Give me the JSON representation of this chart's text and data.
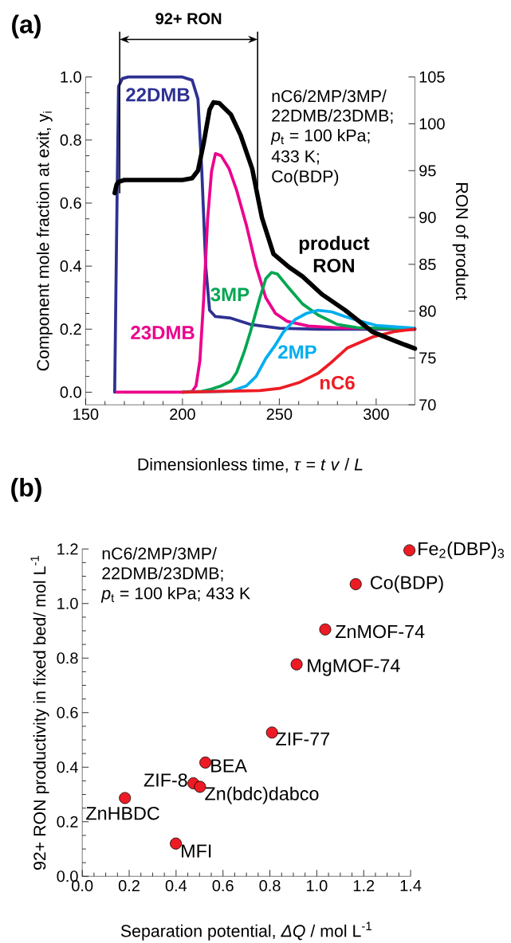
{
  "chart_data": [
    {
      "type": "line",
      "title": "(a)",
      "xlabel": "Dimensionless time, *τ* = *t* *v* / *L*",
      "ylabel": "Component mole fraction at exit, y$_{i}$",
      "y2label": "RON of product",
      "xlim": [
        150,
        320
      ],
      "xticks": [
        150,
        200,
        250,
        300
      ],
      "ylim": [
        -0.04,
        1.0
      ],
      "yticks": [
        {
          "value": 0,
          "label": "0.0"
        },
        {
          "value": 0.2,
          "label": "0.2"
        },
        {
          "value": 0.4,
          "label": "0.4"
        },
        {
          "value": 0.6,
          "label": "0.6"
        },
        {
          "value": 0.8,
          "label": "0.8"
        },
        {
          "value": 1.0,
          "label": "1.0"
        }
      ],
      "y2lim": [
        70,
        105
      ],
      "y2ticks": [
        70,
        75,
        80,
        85,
        90,
        95,
        100,
        105
      ],
      "marker": "none",
      "line_style": "solid",
      "ref_lines": [
        {
          "axis": "x",
          "value": 167.6
        },
        {
          "axis": "x",
          "value": 238.8
        }
      ],
      "annotations": [
        "92+ RON",
        "nC6/2MP/3MP/",
        "22DMB/23DMB;",
        "*p*$_{t}$ = 100 kPa;",
        "433 K;",
        "Co(BDP)"
      ],
      "series": [
        {
          "name": "22DMB",
          "color": "#2e3192",
          "x": [
            165,
            166,
            167,
            169,
            172,
            200,
            205,
            208,
            210,
            212,
            214,
            217,
            225,
            235,
            250,
            270,
            320
          ],
          "values": [
            0,
            0.5,
            0.97,
            0.995,
            1.0,
            1.0,
            0.99,
            0.93,
            0.7,
            0.4,
            0.26,
            0.24,
            0.235,
            0.215,
            0.203,
            0.2,
            0.2
          ]
        },
        {
          "name": "23DMB",
          "color": "#ec008c",
          "x": [
            166,
            200,
            205,
            207,
            209,
            211,
            213,
            215,
            217,
            220,
            224,
            228,
            233,
            238,
            243,
            248,
            254,
            265,
            280,
            320
          ],
          "values": [
            0,
            0,
            0.003,
            0.02,
            0.1,
            0.3,
            0.55,
            0.7,
            0.757,
            0.75,
            0.71,
            0.64,
            0.53,
            0.4,
            0.3,
            0.25,
            0.225,
            0.21,
            0.204,
            0.2
          ]
        },
        {
          "name": "3MP",
          "color": "#00a651",
          "x": [
            200,
            210,
            215,
            220,
            225,
            228,
            232,
            235,
            240,
            243,
            246,
            249,
            255,
            262,
            270,
            280,
            290,
            320
          ],
          "values": [
            0,
            0.003,
            0.01,
            0.02,
            0.035,
            0.063,
            0.13,
            0.19,
            0.3,
            0.36,
            0.38,
            0.375,
            0.33,
            0.28,
            0.245,
            0.215,
            0.205,
            0.2
          ]
        },
        {
          "name": "2MP",
          "color": "#00aeef",
          "x": [
            200,
            225,
            233,
            238,
            243,
            248,
            252,
            258,
            264,
            270,
            277,
            284,
            292,
            300,
            320
          ],
          "values": [
            0,
            0.003,
            0.02,
            0.05,
            0.107,
            0.15,
            0.19,
            0.23,
            0.25,
            0.26,
            0.255,
            0.24,
            0.225,
            0.212,
            0.203
          ]
        },
        {
          "name": "nC6",
          "color": "#ed1c24",
          "x": [
            200,
            240,
            250,
            260,
            270,
            276,
            285,
            298,
            310,
            320
          ],
          "values": [
            0,
            0.005,
            0.012,
            0.03,
            0.06,
            0.09,
            0.14,
            0.175,
            0.193,
            0.2
          ]
        },
        {
          "name": "product RON",
          "color": "#000000",
          "axis": "y2",
          "x": [
            165,
            166,
            167,
            170,
            200,
            205,
            208,
            211,
            214,
            216,
            219,
            225,
            230,
            236,
            241,
            247,
            255,
            262,
            272,
            284,
            298,
            310,
            320
          ],
          "values": [
            92.6,
            93.5,
            93.8,
            94.0,
            94.0,
            94.2,
            95,
            98,
            101.5,
            102.3,
            102.2,
            101,
            98.8,
            95.2,
            90,
            86.1,
            84.7,
            83.7,
            81.8,
            80.1,
            77.8,
            76.8,
            76.0
          ]
        }
      ]
    },
    {
      "type": "scatter",
      "title": "(b)",
      "xlabel": "Separation potential, *ΔQ* / mol L$^{-1}$",
      "ylabel": "92+ RON productivity in fixed bed/ mol L$^{-1}$",
      "xlim": [
        0,
        1.4
      ],
      "xticks": [
        {
          "value": 0,
          "label": "0.0"
        },
        {
          "value": 0.2,
          "label": "0.2"
        },
        {
          "value": 0.4,
          "label": "0.4"
        },
        {
          "value": 0.6,
          "label": "0.6"
        },
        {
          "value": 0.8,
          "label": "0.8"
        },
        {
          "value": 1.0,
          "label": "1.0"
        },
        {
          "value": 1.2,
          "label": "1.2"
        },
        {
          "value": 1.4,
          "label": "1.4"
        }
      ],
      "ylim": [
        0,
        1.2
      ],
      "yticks": [
        {
          "value": 0,
          "label": "0.0"
        },
        {
          "value": 0.2,
          "label": "0.2"
        },
        {
          "value": 0.4,
          "label": "0.4"
        },
        {
          "value": 0.6,
          "label": "0.6"
        },
        {
          "value": 0.8,
          "label": "0.8"
        },
        {
          "value": 1.0,
          "label": "1.0"
        },
        {
          "value": 1.2,
          "label": "1.2"
        }
      ],
      "marker": "circle",
      "color": "#ed1c24",
      "x": [
        1.395,
        1.166,
        1.036,
        0.914,
        0.809,
        0.525,
        0.474,
        0.502,
        0.182,
        0.399
      ],
      "values": [
        1.195,
        1.071,
        0.905,
        0.777,
        0.527,
        0.417,
        0.341,
        0.328,
        0.287,
        0.12
      ],
      "annotations": [
        "nC6/2MP/3MP/",
        "22DMB/23DMB;",
        "*p*$_{t}$ = 100 kPa; 433 K",
        {
          "text": "Fe$_{2}$(DBP)$_{3}$",
          "x": 1.395,
          "y": 1.195
        },
        {
          "text": "Co(BDP)",
          "x": 1.166,
          "y": 1.071
        },
        {
          "text": "ZnMOF-74",
          "x": 1.036,
          "y": 0.905
        },
        {
          "text": "MgMOF-74",
          "x": 0.914,
          "y": 0.777
        },
        {
          "text": "ZIF-77",
          "x": 0.809,
          "y": 0.527
        },
        {
          "text": "BEA",
          "x": 0.525,
          "y": 0.417
        },
        {
          "text": "ZIF-8",
          "x": 0.474,
          "y": 0.341
        },
        {
          "text": "Zn(bdc)dabco",
          "x": 0.502,
          "y": 0.328
        },
        {
          "text": "ZnHBDC",
          "x": 0.182,
          "y": 0.287
        },
        {
          "text": "MFI",
          "x": 0.399,
          "y": 0.12
        }
      ]
    }
  ]
}
